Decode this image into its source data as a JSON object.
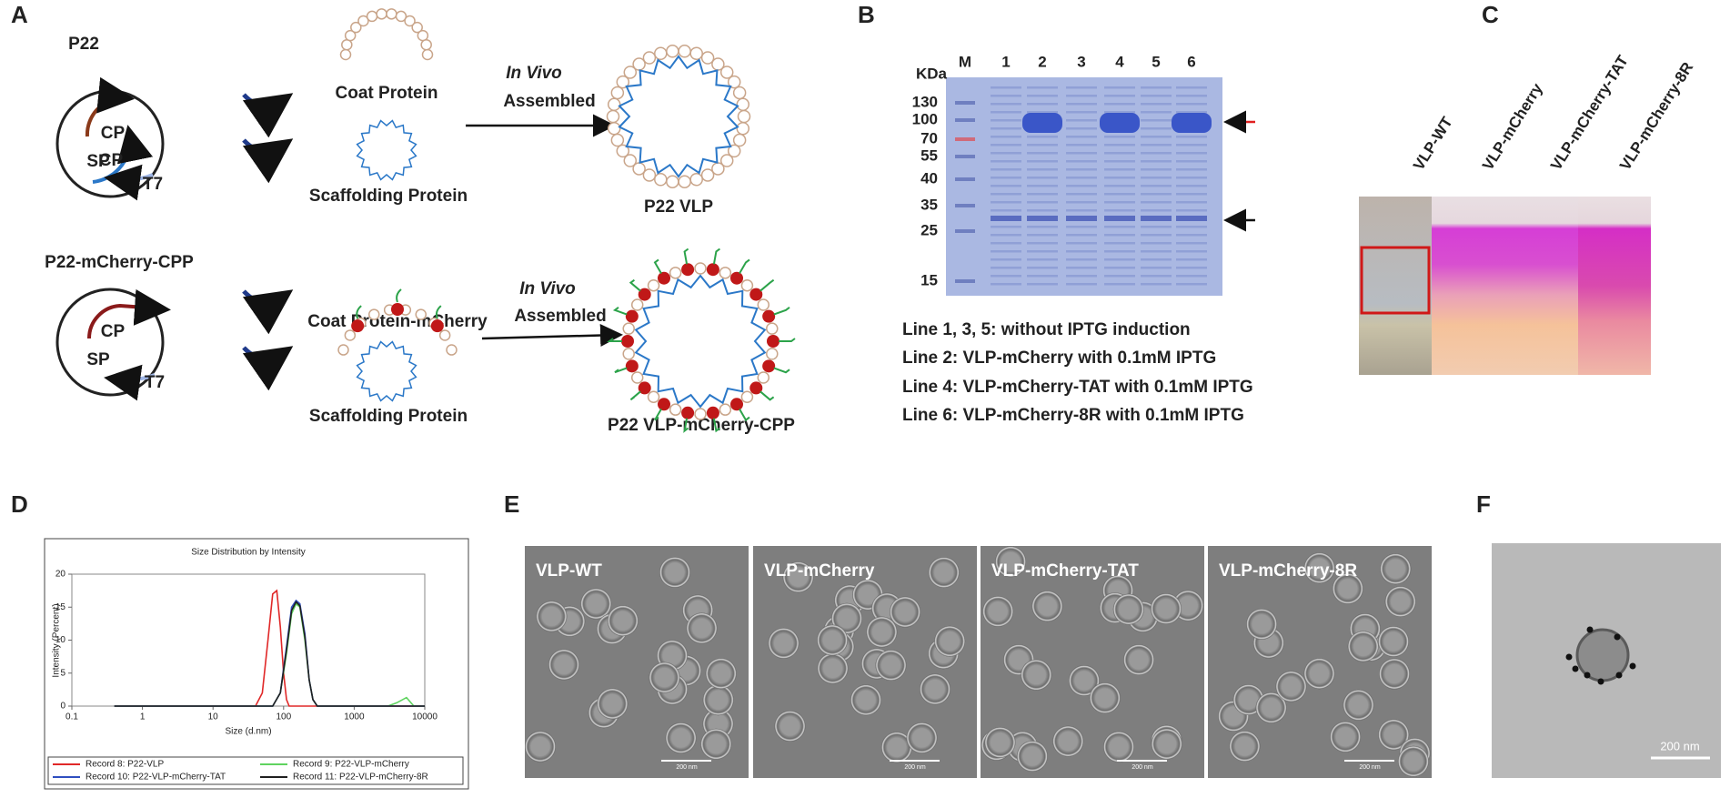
{
  "panel_labels": [
    "A",
    "B",
    "C",
    "D",
    "E",
    "F"
  ],
  "panel_a": {
    "top": {
      "title": "P22",
      "genes": [
        "CP",
        "SP",
        "T7"
      ],
      "coat": "Coat Protein",
      "scaffold": "Scaffolding Protein",
      "arrow_italic": "In Vivo",
      "arrow_text": "Assembled",
      "product": "P22 VLP"
    },
    "bottom": {
      "title": "P22-mCherry-CPP",
      "genes": [
        "CP",
        "SP",
        "T7"
      ],
      "coat": "Coat Protein-mCherry",
      "scaffold": "Scaffolding Protein",
      "arrow_italic": "In Vivo",
      "arrow_text": "Assembled",
      "product": "P22 VLP-mCherry-CPP"
    }
  },
  "panel_b": {
    "unit": "KDa",
    "lanes": [
      "M",
      "1",
      "2",
      "3",
      "4",
      "5",
      "6"
    ],
    "markers": [
      "130",
      "100",
      "70",
      "55",
      "40",
      "35",
      "25",
      "15"
    ],
    "notes": [
      "Line 1, 3, 5: without IPTG induction",
      "Line 2: VLP-mCherry with 0.1mM IPTG",
      "Line 4: VLP-mCherry-TAT with 0.1mM IPTG",
      "Line 6: VLP-mCherry-8R with 0.1mM IPTG"
    ]
  },
  "panel_c": {
    "tubes": [
      "VLP-WT",
      "VLP-mCherry",
      "VLP-mCherry-TAT",
      "VLP-mCherry-8R"
    ]
  },
  "chart_data": {
    "type": "line",
    "title": "Size Distribution by Intensity",
    "x_label": "Size (d.nm)",
    "y_label": "Intensity (Percent)",
    "xscale": "log",
    "xlim": [
      0.1,
      10000
    ],
    "xticks": [
      0.1,
      1,
      10,
      100,
      1000,
      10000
    ],
    "ylim": [
      0,
      20
    ],
    "yticks": [
      0,
      5,
      10,
      15,
      20
    ],
    "grid": false,
    "series": [
      {
        "name": "Record 8: P22-VLP",
        "color": "#e02828",
        "x": [
          0.4,
          40,
          50,
          60,
          70,
          80,
          90,
          100,
          110,
          120,
          10000
        ],
        "values": [
          0,
          0,
          2,
          10,
          17,
          17.5,
          12,
          5,
          1,
          0,
          0
        ]
      },
      {
        "name": "Record 9: P22-VLP-mCherry",
        "color": "#5fd35f",
        "x": [
          0.4,
          70,
          90,
          110,
          130,
          150,
          170,
          200,
          230,
          260,
          300,
          3000,
          4000,
          5500,
          7000,
          10000
        ],
        "values": [
          0,
          0,
          2,
          8,
          14,
          15.5,
          15,
          10,
          4,
          1,
          0,
          0,
          0.5,
          1.3,
          0,
          0
        ]
      },
      {
        "name": "Record 10: P22-VLP-mCherry-TAT",
        "color": "#2f4fc0",
        "x": [
          0.4,
          70,
          90,
          110,
          130,
          150,
          170,
          200,
          230,
          260,
          300,
          10000
        ],
        "values": [
          0,
          0,
          2,
          9,
          15,
          16,
          15.5,
          11,
          4,
          1,
          0,
          0
        ]
      },
      {
        "name": "Record 11: P22-VLP-mCherry-8R",
        "color": "#202020",
        "x": [
          0.4,
          70,
          90,
          110,
          130,
          150,
          170,
          200,
          230,
          260,
          300,
          10000
        ],
        "values": [
          0,
          0,
          2,
          8.5,
          14.5,
          15.8,
          15.2,
          10.5,
          4,
          1,
          0,
          0
        ]
      }
    ]
  },
  "panel_e": {
    "images": [
      "VLP-WT",
      "VLP-mCherry",
      "VLP-mCherry-TAT",
      "VLP-mCherry-8R"
    ],
    "scale_bar": "200 nm"
  },
  "panel_f": {
    "scale_bar": "200 nm"
  }
}
